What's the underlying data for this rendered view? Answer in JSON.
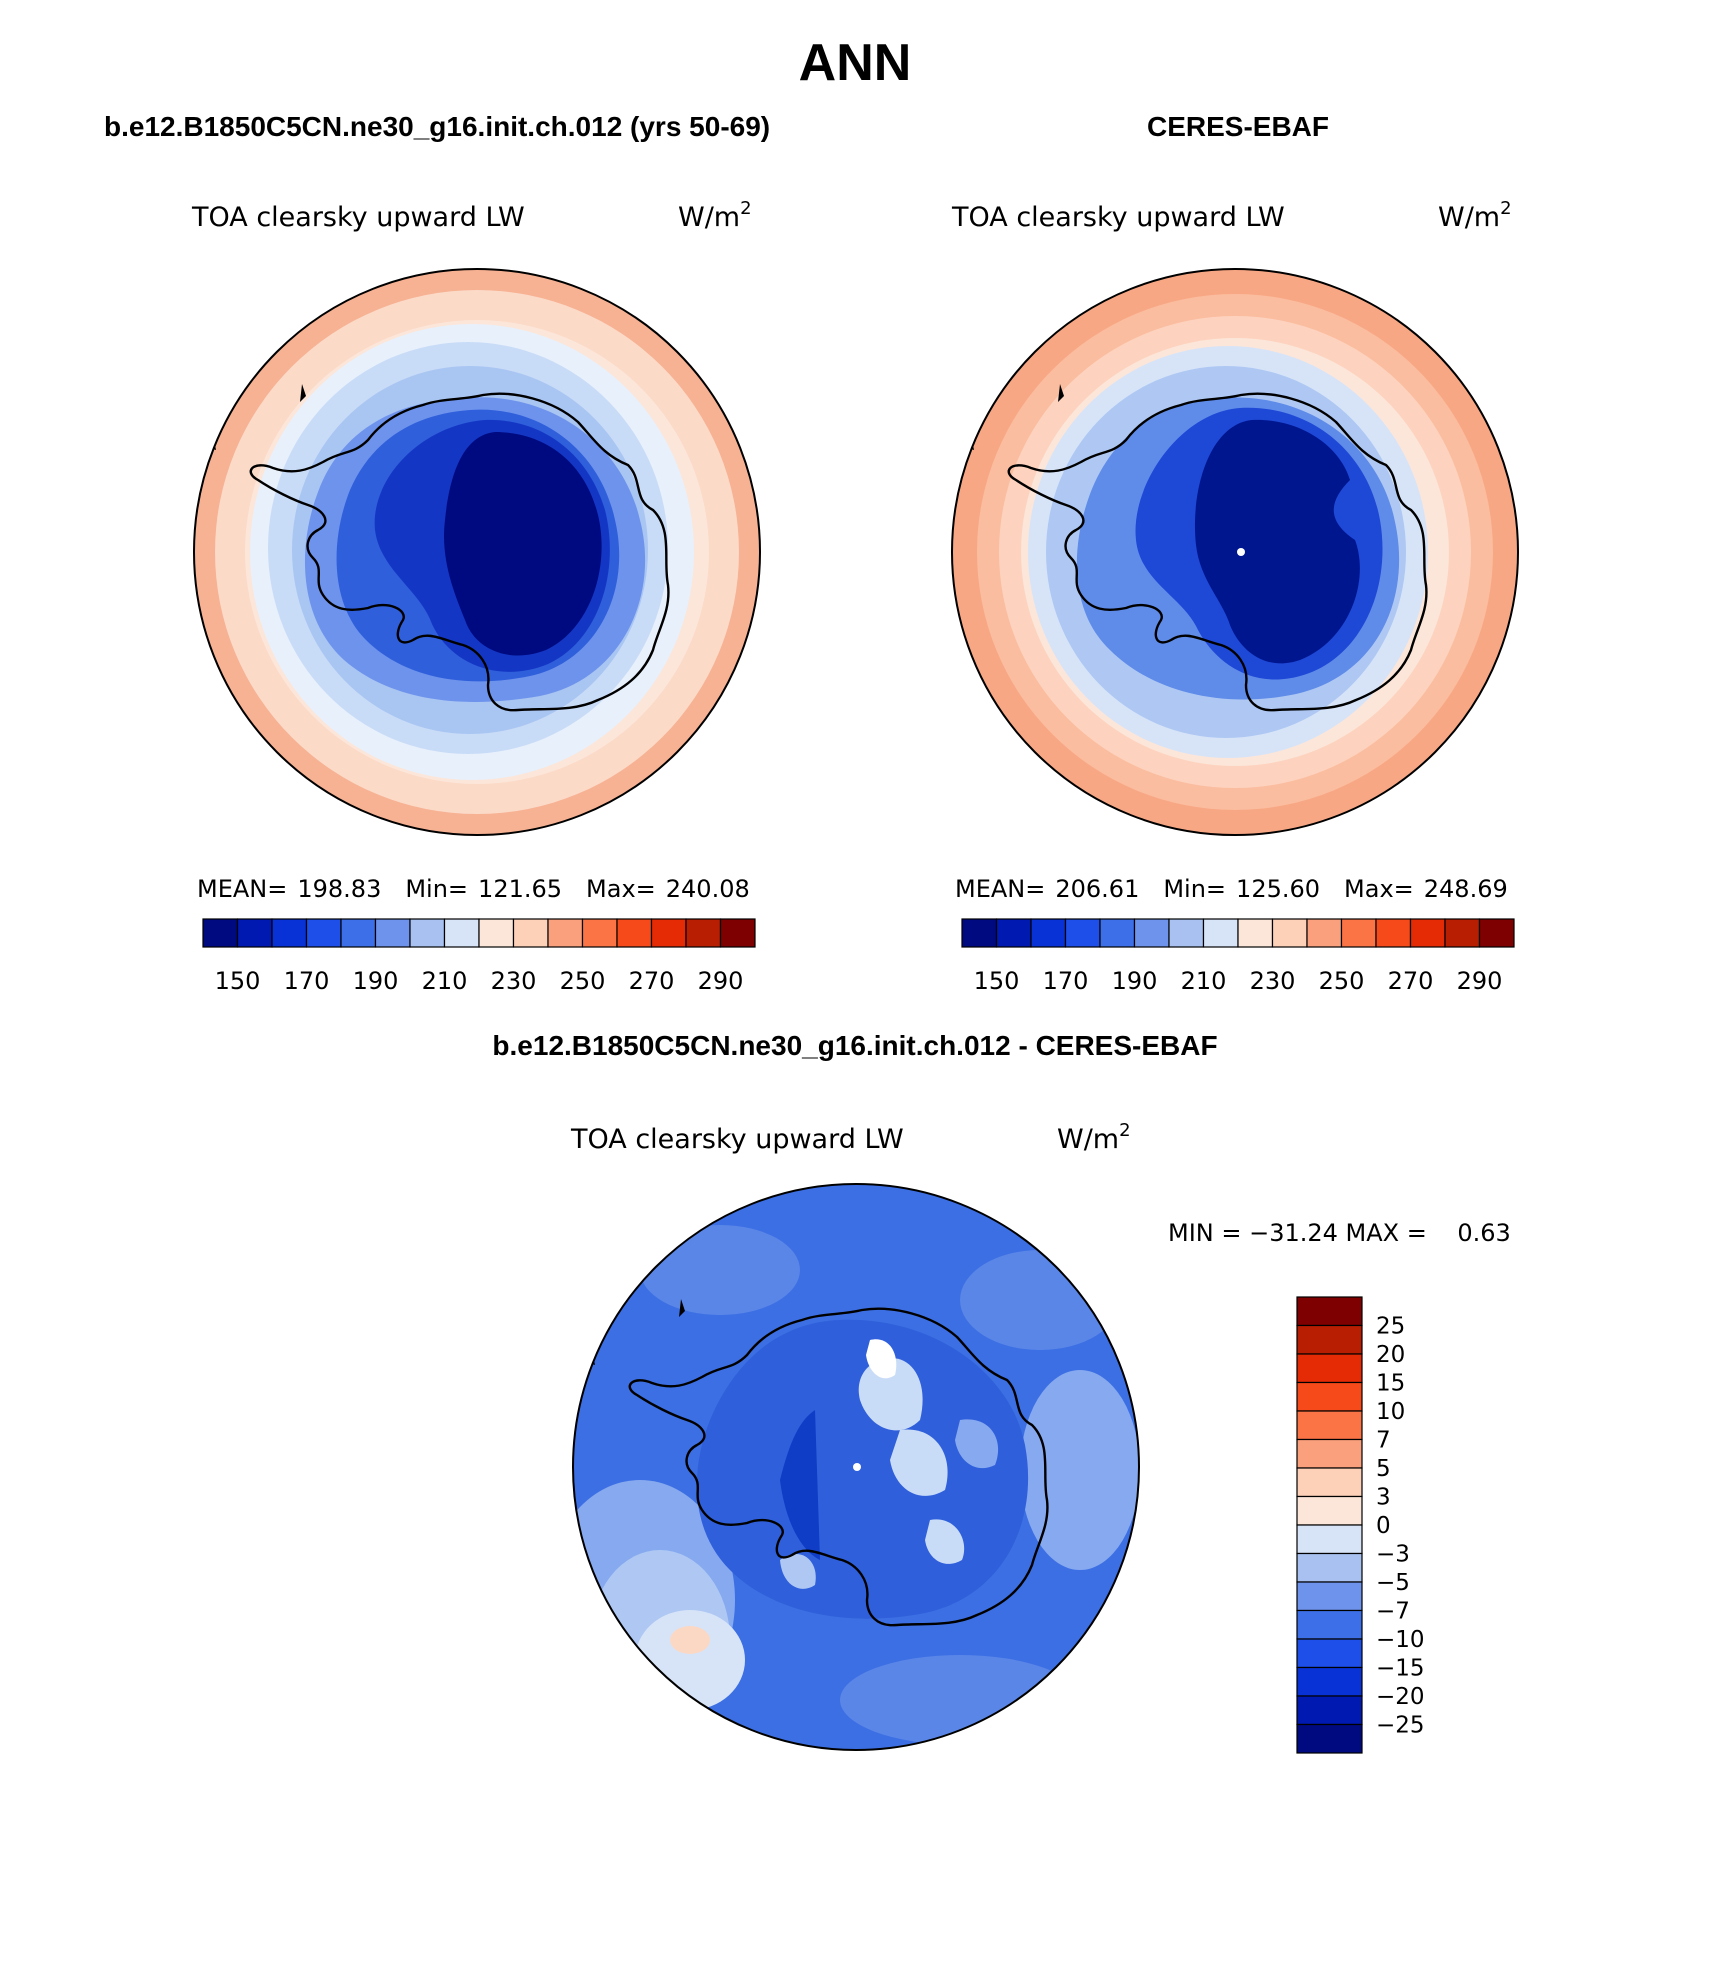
{
  "title": "ANN",
  "panels": [
    {
      "id": "model",
      "header": "b.e12.B1850C5CN.ne30_g16.init.ch.012 (yrs 50-69)",
      "variable": "TOA clearsky upward LW",
      "units_base": "W/m",
      "units_exp": "2",
      "stats": {
        "mean_label": "MEAN=",
        "mean": "198.83",
        "min_label": "Min=",
        "min": "121.65",
        "max_label": "Max=",
        "max": "240.08"
      },
      "colors": [
        "#e8f0fb",
        "#c9dcf7",
        "#a9c5f2",
        "#86a9ef",
        "#5d87eb",
        "#2f5fdb",
        "#0f3dc6",
        "#00168f"
      ]
    },
    {
      "id": "obs",
      "header": "CERES-EBAF",
      "variable": "TOA clearsky upward LW",
      "units_base": "W/m",
      "units_exp": "2",
      "stats": {
        "mean_label": "MEAN=",
        "mean": "206.61",
        "min_label": "Min=",
        "min": "125.60",
        "max_label": "Max=",
        "max": "248.69"
      },
      "colors": [
        "#fbb095",
        "#fdd3bf",
        "#fce6d9",
        "#d7e4f8",
        "#aec8f3",
        "#5f8be9",
        "#1e48d6",
        "#00168f"
      ]
    },
    {
      "id": "diff",
      "header": "b.e12.B1850C5CN.ne30_g16.init.ch.012 - CERES-EBAF",
      "variable": "TOA clearsky upward LW",
      "units_base": "W/m",
      "units_exp": "2",
      "stats_text": "MIN = −31.24 MAX =    0.63",
      "colors": [
        "#3c6fe3",
        "#5a86e8",
        "#86a9ef",
        "#aec8f3",
        "#5a86e8",
        "#2f5fdb",
        "#0f3dc6",
        "#c9dcf7"
      ]
    }
  ],
  "horizontal_colorbar": {
    "colors": [
      "#000a80",
      "#0019b0",
      "#0832d6",
      "#1e4fe8",
      "#3d6fe8",
      "#6e93ec",
      "#a8c1f1",
      "#d7e4f8",
      "#fce6d9",
      "#fdd0b8",
      "#fba07c",
      "#fb7446",
      "#f74a1a",
      "#e52b06",
      "#b81e02",
      "#7f0000"
    ],
    "tick_labels": [
      "150",
      "170",
      "190",
      "210",
      "230",
      "250",
      "270",
      "290"
    ]
  },
  "vertical_colorbar": {
    "colors_top_to_bottom": [
      "#7f0000",
      "#b81e02",
      "#e52b06",
      "#f74a1a",
      "#fb7446",
      "#fba07c",
      "#fdd0b8",
      "#fce6d9",
      "#d7e4f8",
      "#a8c1f1",
      "#6e93ec",
      "#3d6fe8",
      "#1e4fe8",
      "#0832d6",
      "#0019b0",
      "#000a80"
    ],
    "tick_labels": [
      "25",
      "20",
      "15",
      "10",
      "7",
      "5",
      "3",
      "0",
      "−3",
      "−5",
      "−7",
      "−10",
      "−15",
      "−20",
      "−25"
    ]
  }
}
